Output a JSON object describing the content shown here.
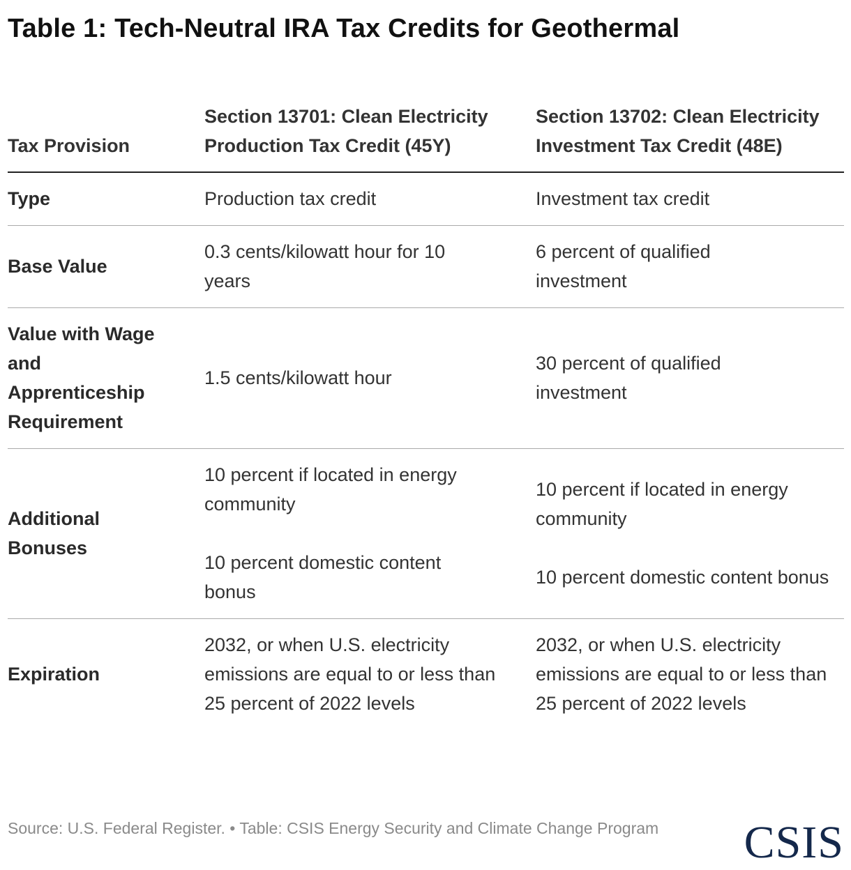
{
  "title": "Table 1: Tech-Neutral IRA Tax Credits for Geothermal",
  "table": {
    "headers": [
      "Tax Provision",
      "Section 13701: Clean Electricity Production Tax Credit (45Y)",
      "Section 13702: Clean Electricity Investment Tax Credit (48E)"
    ],
    "rows": [
      {
        "label": "Type",
        "col1": [
          "Production tax credit"
        ],
        "col2": [
          "Investment tax credit"
        ]
      },
      {
        "label": "Base Value",
        "col1": [
          "0.3 cents/kilowatt hour for 10 years"
        ],
        "col2": [
          "6 percent of qualified investment"
        ]
      },
      {
        "label": "Value with Wage and Apprenticeship Requirement",
        "col1": [
          "1.5 cents/kilowatt hour"
        ],
        "col2": [
          "30 percent of qualified investment"
        ]
      },
      {
        "label": "Additional Bonuses",
        "col1": [
          "10 percent if located in energy community",
          "10 percent domestic content bonus"
        ],
        "col2": [
          "10 percent if located in energy community",
          "10 percent domestic content bonus"
        ]
      },
      {
        "label": "Expiration",
        "col1": [
          "2032, or when U.S. electricity emissions are equal to or less than 25 percent of 2022 levels"
        ],
        "col2": [
          "2032, or when U.S. electricity emissions are equal to or less than 25 percent of 2022 levels"
        ]
      }
    ]
  },
  "footer": {
    "source": "Source: U.S. Federal Register.  • Table: CSIS Energy Security and Climate Change Program",
    "logo": "CSIS"
  },
  "colors": {
    "logo": "#14284b",
    "text": "#333333",
    "muted": "#8a8a8a"
  }
}
